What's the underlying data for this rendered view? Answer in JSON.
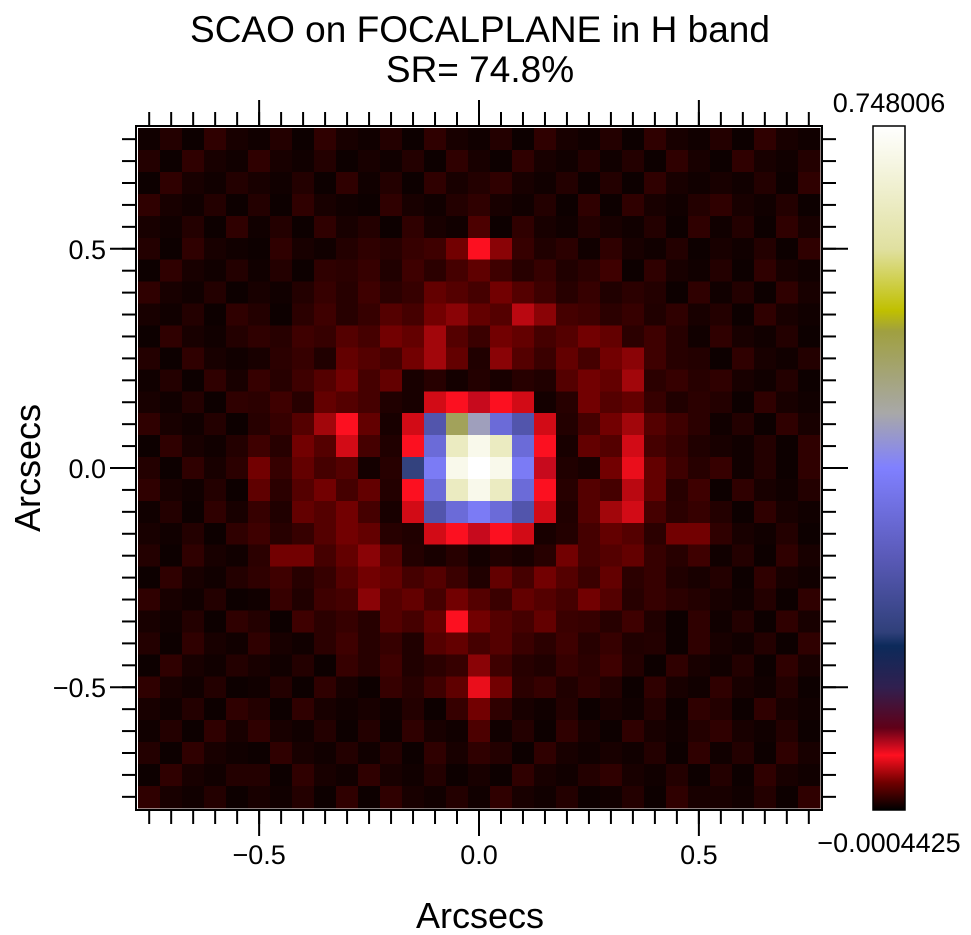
{
  "chart_data": {
    "type": "heatmap",
    "title": "SCAO on FOCALPLANE in H band",
    "subtitle": "SR= 74.8%",
    "xlabel": "Arcsecs",
    "ylabel": "Arcsecs",
    "xlim": [
      -0.78,
      0.78
    ],
    "ylim": [
      -0.78,
      0.78
    ],
    "xticks": [
      {
        "value": -0.5,
        "label": "−0.5"
      },
      {
        "value": 0,
        "label": "0.0"
      },
      0.5
    ],
    "yticks": [
      {
        "value": -0.5,
        "label": "−0.5"
      },
      {
        "value": 0,
        "label": "0.0"
      },
      0.5
    ],
    "minorticks": [
      -0.75,
      -0.7,
      -0.65,
      -0.6,
      -0.55,
      -0.5,
      -0.45,
      -0.4,
      -0.35,
      -0.3,
      -0.25,
      -0.2,
      -0.15,
      -0.1,
      -0.05,
      0,
      0.05,
      0.1,
      0.15,
      0.2,
      0.25,
      0.3,
      0.35,
      0.4,
      0.45,
      0.5,
      0.55,
      0.6,
      0.65,
      0.7,
      0.75
    ],
    "zlim": [
      -0.0004425,
      0.748006
    ],
    "colorbar_ticks": [
      {
        "value": -0.0004425,
        "label": "−0.0004425"
      },
      0.748006
    ],
    "colorscale": [
      [
        0,
        "#000000"
      ],
      [
        0.04,
        "#700000"
      ],
      [
        0.08,
        "#ff1020"
      ],
      [
        0.12,
        "#600018"
      ],
      [
        0.18,
        "#302050"
      ],
      [
        0.24,
        "#0c2a5a"
      ],
      [
        0.26,
        "#30407a"
      ],
      [
        0.37,
        "#5a5ab8"
      ],
      [
        0.5,
        "#8080ff"
      ],
      [
        0.58,
        "#a8a8a8"
      ],
      [
        0.7,
        "#a0a040"
      ],
      [
        0.73,
        "#c0c000"
      ],
      [
        0.82,
        "#e0e0a0"
      ],
      [
        1,
        "#ffffff"
      ]
    ],
    "x": [
      -0.75,
      -0.7,
      -0.65,
      -0.6,
      -0.55,
      -0.5,
      -0.45,
      -0.4,
      -0.35,
      -0.3,
      -0.25,
      -0.2,
      -0.15,
      -0.1,
      -0.05,
      0,
      0.05,
      0.1,
      0.15,
      0.2,
      0.25,
      0.3,
      0.35,
      0.4,
      0.45,
      0.5,
      0.55,
      0.6,
      0.65,
      0.7,
      0.75
    ],
    "y": [
      0.75,
      0.7,
      0.65,
      0.6,
      0.55,
      0.5,
      0.45,
      0.4,
      0.35,
      0.3,
      0.25,
      0.2,
      0.15,
      0.1,
      0.05,
      0,
      -0.05,
      -0.1,
      -0.15,
      -0.2,
      -0.25,
      -0.3,
      -0.35,
      -0.4,
      -0.45,
      -0.5,
      -0.55,
      -0.6,
      -0.65,
      -0.7,
      -0.75
    ],
    "z": [
      [
        0.004,
        0.009,
        0.003,
        0.012,
        0.006,
        0.004,
        0.009,
        0.003,
        0.012,
        0.006,
        0.004,
        0.009,
        0.003,
        0.012,
        0.006,
        0.004,
        0.009,
        0.003,
        0.012,
        0.006,
        0.004,
        0.009,
        0.003,
        0.012,
        0.006,
        0.004,
        0.009,
        0.003,
        0.012,
        0.006,
        0.004
      ],
      [
        0.009,
        0.003,
        0.012,
        0.006,
        0.004,
        0.012,
        0.006,
        0.004,
        0.009,
        0.003,
        0.006,
        0.004,
        0.009,
        0.003,
        0.012,
        0.006,
        0.003,
        0.012,
        0.006,
        0.004,
        0.009,
        0.004,
        0.009,
        0.003,
        0.012,
        0.006,
        0.003,
        0.012,
        0.006,
        0.004,
        0.009
      ],
      [
        0.003,
        0.012,
        0.006,
        0.004,
        0.009,
        0.006,
        0.004,
        0.009,
        0.003,
        0.012,
        0.004,
        0.009,
        0.003,
        0.012,
        0.006,
        0.009,
        0.012,
        0.006,
        0.004,
        0.009,
        0.003,
        0.009,
        0.003,
        0.012,
        0.006,
        0.004,
        0.006,
        0.004,
        0.009,
        0.003,
        0.012
      ],
      [
        0.012,
        0.006,
        0.004,
        0.009,
        0.003,
        0.009,
        0.003,
        0.012,
        0.006,
        0.004,
        0.003,
        0.012,
        0.006,
        0.004,
        0.009,
        0.012,
        0.006,
        0.004,
        0.009,
        0.003,
        0.012,
        0.003,
        0.012,
        0.006,
        0.004,
        0.009,
        0.012,
        0.006,
        0.004,
        0.009,
        0.003
      ],
      [
        0.006,
        0.004,
        0.009,
        0.003,
        0.012,
        0.004,
        0.009,
        0.003,
        0.012,
        0.006,
        0.009,
        0.003,
        0.012,
        0.006,
        0.004,
        0.02,
        0.003,
        0.012,
        0.006,
        0.004,
        0.009,
        0.006,
        0.004,
        0.009,
        0.003,
        0.012,
        0.004,
        0.009,
        0.003,
        0.012,
        0.006
      ],
      [
        0.009,
        0.003,
        0.012,
        0.006,
        0.004,
        0.003,
        0.012,
        0.006,
        0.004,
        0.009,
        0.012,
        0.01,
        0.014,
        0.016,
        0.03,
        0.06,
        0.035,
        0.014,
        0.008,
        0.011,
        0.004,
        0.012,
        0.006,
        0.004,
        0.009,
        0.003,
        0.006,
        0.004,
        0.009,
        0.003,
        0.012
      ],
      [
        0.003,
        0.012,
        0.006,
        0.004,
        0.009,
        0.004,
        0.009,
        0.003,
        0.012,
        0.011,
        0.014,
        0.008,
        0.016,
        0.011,
        0.018,
        0.025,
        0.016,
        0.01,
        0.014,
        0.008,
        0.011,
        0.016,
        0.003,
        0.012,
        0.006,
        0.004,
        0.009,
        0.003,
        0.012,
        0.006,
        0.004
      ],
      [
        0.012,
        0.006,
        0.004,
        0.009,
        0.003,
        0.006,
        0.004,
        0.009,
        0.014,
        0.01,
        0.016,
        0.011,
        0.014,
        0.026,
        0.022,
        0.018,
        0.03,
        0.022,
        0.016,
        0.01,
        0.014,
        0.008,
        0.011,
        0.009,
        0.003,
        0.012,
        0.004,
        0.009,
        0.003,
        0.012,
        0.006
      ],
      [
        0.006,
        0.004,
        0.009,
        0.003,
        0.012,
        0.009,
        0.003,
        0.011,
        0.016,
        0.01,
        0.014,
        0.022,
        0.018,
        0.03,
        0.035,
        0.026,
        0.022,
        0.045,
        0.035,
        0.018,
        0.016,
        0.011,
        0.014,
        0.008,
        0.012,
        0.006,
        0.009,
        0.003,
        0.012,
        0.006,
        0.004
      ],
      [
        0.003,
        0.012,
        0.006,
        0.004,
        0.009,
        0.012,
        0.01,
        0.016,
        0.014,
        0.022,
        0.018,
        0.03,
        0.026,
        0.04,
        0.022,
        0.015,
        0.03,
        0.026,
        0.018,
        0.022,
        0.03,
        0.026,
        0.011,
        0.016,
        0.01,
        0.004,
        0.012,
        0.006,
        0.004,
        0.009,
        0.003
      ],
      [
        0.009,
        0.003,
        0.012,
        0.006,
        0.004,
        0.006,
        0.011,
        0.014,
        0.008,
        0.026,
        0.022,
        0.018,
        0.03,
        0.04,
        0.026,
        0.008,
        0.035,
        0.022,
        0.015,
        0.026,
        0.018,
        0.03,
        0.035,
        0.016,
        0.01,
        0.009,
        0.003,
        0.012,
        0.006,
        0.004,
        0.009
      ],
      [
        0.004,
        0.009,
        0.003,
        0.012,
        0.006,
        0.014,
        0.01,
        0.016,
        0.022,
        0.03,
        0.018,
        0.026,
        0.006,
        0.01,
        0.005,
        0.009,
        0.006,
        0.01,
        0.008,
        0.022,
        0.03,
        0.026,
        0.04,
        0.011,
        0.014,
        0.01,
        0.012,
        0.006,
        0.004,
        0.009,
        0.003
      ],
      [
        0.006,
        0.004,
        0.009,
        0.003,
        0.012,
        0.011,
        0.016,
        0.01,
        0.026,
        0.022,
        0.018,
        0.008,
        0.006,
        0.05,
        0.06,
        0.07,
        0.06,
        0.05,
        0.005,
        0.01,
        0.03,
        0.022,
        0.026,
        0.014,
        0.008,
        0.011,
        0.009,
        0.003,
        0.012,
        0.006,
        0.004
      ],
      [
        0.012,
        0.006,
        0.004,
        0.009,
        0.003,
        0.01,
        0.014,
        0.022,
        0.04,
        0.06,
        0.026,
        0.006,
        0.05,
        0.26,
        0.5,
        0.42,
        0.32,
        0.26,
        0.05,
        0.009,
        0.018,
        0.03,
        0.04,
        0.022,
        0.016,
        0.011,
        0.004,
        0.009,
        0.003,
        0.012,
        0.006
      ],
      [
        0.003,
        0.012,
        0.006,
        0.004,
        0.009,
        0.016,
        0.01,
        0.03,
        0.022,
        0.05,
        0.018,
        0.008,
        0.06,
        0.32,
        0.66,
        0.72,
        0.66,
        0.32,
        0.06,
        0.006,
        0.026,
        0.022,
        0.05,
        0.018,
        0.014,
        0.008,
        0.006,
        0.004,
        0.009,
        0.003,
        0.012
      ],
      [
        0.009,
        0.003,
        0.012,
        0.006,
        0.011,
        0.03,
        0.014,
        0.026,
        0.018,
        0.022,
        0.005,
        0.01,
        0.2,
        0.36,
        0.72,
        0.748,
        0.72,
        0.36,
        0.07,
        0.008,
        0.006,
        0.03,
        0.055,
        0.026,
        0.016,
        0.01,
        0.014,
        0.004,
        0.009,
        0.003,
        0.012
      ],
      [
        0.012,
        0.006,
        0.004,
        0.009,
        0.003,
        0.025,
        0.011,
        0.022,
        0.03,
        0.018,
        0.026,
        0.009,
        0.06,
        0.32,
        0.66,
        0.72,
        0.66,
        0.32,
        0.06,
        0.01,
        0.022,
        0.018,
        0.045,
        0.026,
        0.01,
        0.016,
        0.003,
        0.012,
        0.006,
        0.004,
        0.009
      ],
      [
        0.004,
        0.009,
        0.003,
        0.012,
        0.006,
        0.014,
        0.008,
        0.026,
        0.022,
        0.03,
        0.018,
        0.006,
        0.05,
        0.26,
        0.32,
        0.36,
        0.32,
        0.26,
        0.05,
        0.008,
        0.022,
        0.04,
        0.05,
        0.018,
        0.011,
        0.014,
        0.009,
        0.003,
        0.012,
        0.006,
        0.004
      ],
      [
        0.006,
        0.004,
        0.009,
        0.003,
        0.012,
        0.016,
        0.01,
        0.014,
        0.022,
        0.03,
        0.026,
        0.01,
        0.008,
        0.05,
        0.06,
        0.07,
        0.06,
        0.05,
        0.006,
        0.009,
        0.018,
        0.026,
        0.022,
        0.011,
        0.03,
        0.03,
        0.012,
        0.006,
        0.004,
        0.009,
        0.003
      ],
      [
        0.009,
        0.003,
        0.012,
        0.006,
        0.004,
        0.011,
        0.03,
        0.03,
        0.018,
        0.026,
        0.035,
        0.022,
        0.009,
        0.006,
        0.01,
        0.005,
        0.008,
        0.006,
        0.01,
        0.03,
        0.018,
        0.022,
        0.026,
        0.014,
        0.01,
        0.016,
        0.004,
        0.009,
        0.003,
        0.012,
        0.006
      ],
      [
        0.003,
        0.012,
        0.006,
        0.004,
        0.009,
        0.012,
        0.016,
        0.01,
        0.014,
        0.022,
        0.03,
        0.026,
        0.018,
        0.022,
        0.015,
        0.008,
        0.026,
        0.018,
        0.03,
        0.022,
        0.015,
        0.026,
        0.011,
        0.014,
        0.008,
        0.006,
        0.009,
        0.003,
        0.012,
        0.006,
        0.004
      ],
      [
        0.012,
        0.006,
        0.004,
        0.009,
        0.003,
        0.004,
        0.014,
        0.008,
        0.016,
        0.018,
        0.035,
        0.022,
        0.026,
        0.018,
        0.03,
        0.022,
        0.015,
        0.026,
        0.022,
        0.018,
        0.03,
        0.022,
        0.01,
        0.014,
        0.011,
        0.009,
        0.006,
        0.004,
        0.009,
        0.003,
        0.012
      ],
      [
        0.006,
        0.004,
        0.009,
        0.003,
        0.012,
        0.009,
        0.003,
        0.016,
        0.011,
        0.014,
        0.01,
        0.022,
        0.018,
        0.026,
        0.06,
        0.03,
        0.022,
        0.018,
        0.026,
        0.015,
        0.014,
        0.01,
        0.016,
        0.008,
        0.003,
        0.012,
        0.004,
        0.009,
        0.003,
        0.012,
        0.006
      ],
      [
        0.009,
        0.003,
        0.012,
        0.006,
        0.004,
        0.012,
        0.006,
        0.004,
        0.011,
        0.016,
        0.01,
        0.014,
        0.008,
        0.022,
        0.026,
        0.018,
        0.022,
        0.015,
        0.011,
        0.016,
        0.01,
        0.014,
        0.008,
        0.009,
        0.003,
        0.012,
        0.006,
        0.004,
        0.009,
        0.003,
        0.012
      ],
      [
        0.003,
        0.012,
        0.006,
        0.004,
        0.009,
        0.006,
        0.004,
        0.009,
        0.003,
        0.014,
        0.01,
        0.016,
        0.008,
        0.011,
        0.014,
        0.035,
        0.016,
        0.01,
        0.008,
        0.014,
        0.011,
        0.016,
        0.009,
        0.003,
        0.012,
        0.006,
        0.004,
        0.009,
        0.003,
        0.012,
        0.006
      ],
      [
        0.012,
        0.006,
        0.004,
        0.009,
        0.003,
        0.004,
        0.009,
        0.003,
        0.012,
        0.006,
        0.003,
        0.014,
        0.01,
        0.016,
        0.025,
        0.055,
        0.03,
        0.011,
        0.014,
        0.008,
        0.012,
        0.009,
        0.003,
        0.012,
        0.006,
        0.004,
        0.012,
        0.006,
        0.004,
        0.009,
        0.003
      ],
      [
        0.006,
        0.004,
        0.009,
        0.003,
        0.012,
        0.009,
        0.003,
        0.012,
        0.006,
        0.004,
        0.006,
        0.004,
        0.009,
        0.003,
        0.014,
        0.03,
        0.012,
        0.006,
        0.004,
        0.009,
        0.003,
        0.006,
        0.004,
        0.009,
        0.003,
        0.012,
        0.009,
        0.003,
        0.012,
        0.006,
        0.004
      ],
      [
        0.004,
        0.009,
        0.003,
        0.012,
        0.006,
        0.012,
        0.006,
        0.004,
        0.009,
        0.003,
        0.009,
        0.003,
        0.012,
        0.006,
        0.004,
        0.02,
        0.004,
        0.009,
        0.003,
        0.012,
        0.006,
        0.003,
        0.012,
        0.006,
        0.004,
        0.009,
        0.012,
        0.006,
        0.004,
        0.009,
        0.003
      ],
      [
        0.009,
        0.003,
        0.012,
        0.006,
        0.004,
        0.003,
        0.012,
        0.006,
        0.004,
        0.009,
        0.004,
        0.009,
        0.003,
        0.012,
        0.006,
        0.012,
        0.009,
        0.003,
        0.012,
        0.006,
        0.004,
        0.006,
        0.004,
        0.009,
        0.003,
        0.012,
        0.004,
        0.009,
        0.003,
        0.012,
        0.006
      ],
      [
        0.003,
        0.012,
        0.006,
        0.004,
        0.009,
        0.009,
        0.003,
        0.012,
        0.006,
        0.004,
        0.012,
        0.006,
        0.004,
        0.009,
        0.003,
        0.006,
        0.003,
        0.012,
        0.006,
        0.004,
        0.009,
        0.012,
        0.006,
        0.004,
        0.009,
        0.003,
        0.009,
        0.003,
        0.012,
        0.006,
        0.004
      ],
      [
        0.012,
        0.006,
        0.004,
        0.009,
        0.003,
        0.006,
        0.004,
        0.009,
        0.003,
        0.012,
        0.003,
        0.012,
        0.006,
        0.004,
        0.009,
        0.004,
        0.012,
        0.006,
        0.004,
        0.009,
        0.003,
        0.004,
        0.009,
        0.003,
        0.012,
        0.006,
        0.006,
        0.004,
        0.009,
        0.003,
        0.012
      ]
    ]
  }
}
